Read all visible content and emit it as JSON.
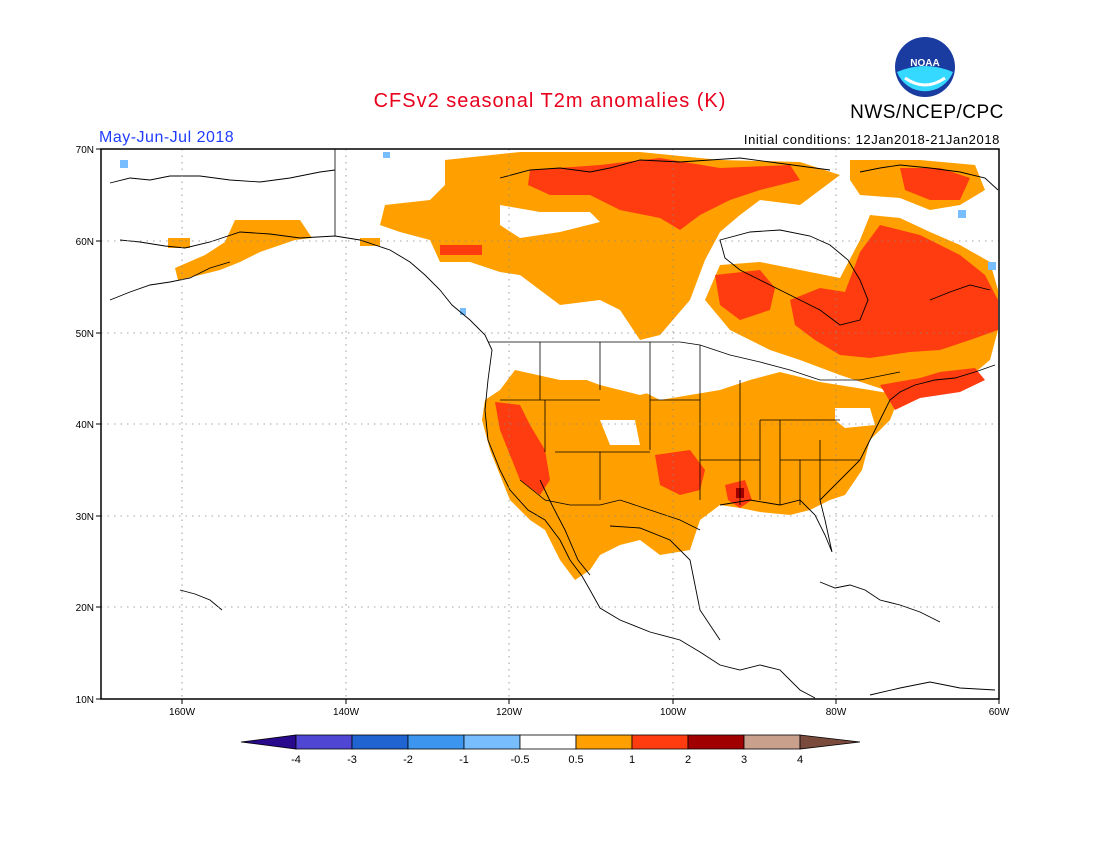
{
  "header": {
    "title": "CFSv2 seasonal T2m anomalies (K)",
    "agency": "NWS/NCEP/CPC",
    "logo_text": "NOAA",
    "period": "May-Jun-Jul 2018",
    "initial_conditions": "Initial conditions: 12Jan2018-21Jan2018"
  },
  "map": {
    "lat_labels": [
      "70N",
      "60N",
      "50N",
      "40N",
      "30N",
      "20N",
      "10N"
    ],
    "lon_labels": [
      "160W",
      "140W",
      "120W",
      "100W",
      "80W",
      "60W"
    ]
  },
  "colorbar": {
    "labels": [
      "-4",
      "-3",
      "-2",
      "-1",
      "-0.5",
      "0.5",
      "1",
      "2",
      "3",
      "4"
    ],
    "colors": [
      "#2a0a8c",
      "#5046d4",
      "#1f64d0",
      "#3c96f0",
      "#78beff",
      "#ffffff",
      "#ffa000",
      "#ff3c10",
      "#a00000",
      "#c8a08c",
      "#7a4a3c"
    ]
  }
}
